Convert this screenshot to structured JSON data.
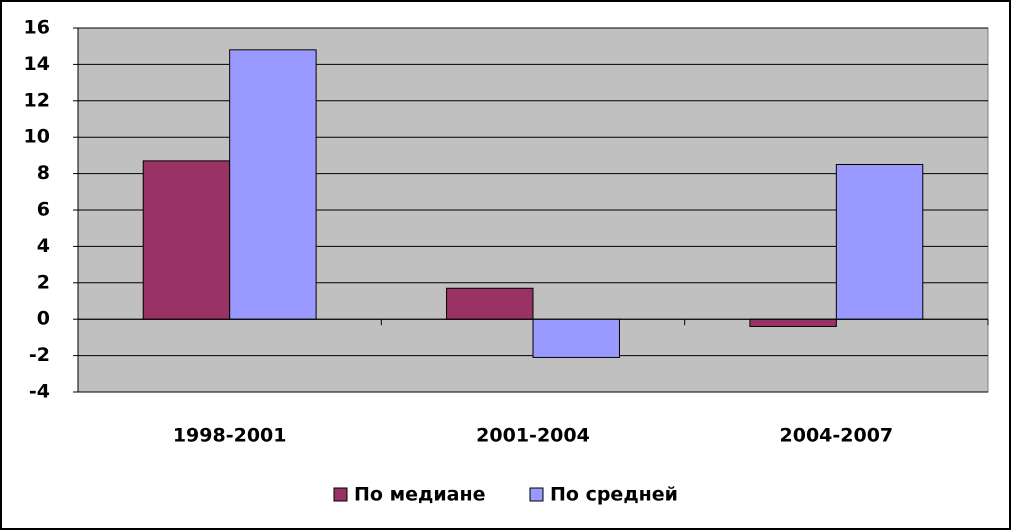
{
  "chart_data": {
    "type": "bar",
    "categories": [
      "1998-2001",
      "2001-2004",
      "2004-2007"
    ],
    "series": [
      {
        "name": "По медиане",
        "color": "#993366",
        "values": [
          8.7,
          1.7,
          -0.4
        ]
      },
      {
        "name": "По средней",
        "color": "#9999ff",
        "values": [
          14.8,
          -2.1,
          8.5
        ]
      }
    ],
    "ylim": [
      -4,
      16
    ],
    "yticks": [
      -4,
      -2,
      0,
      2,
      4,
      6,
      8,
      10,
      12,
      14,
      16
    ],
    "grid": true,
    "plot_background": "#c0c0c0",
    "legend": "bottom"
  }
}
